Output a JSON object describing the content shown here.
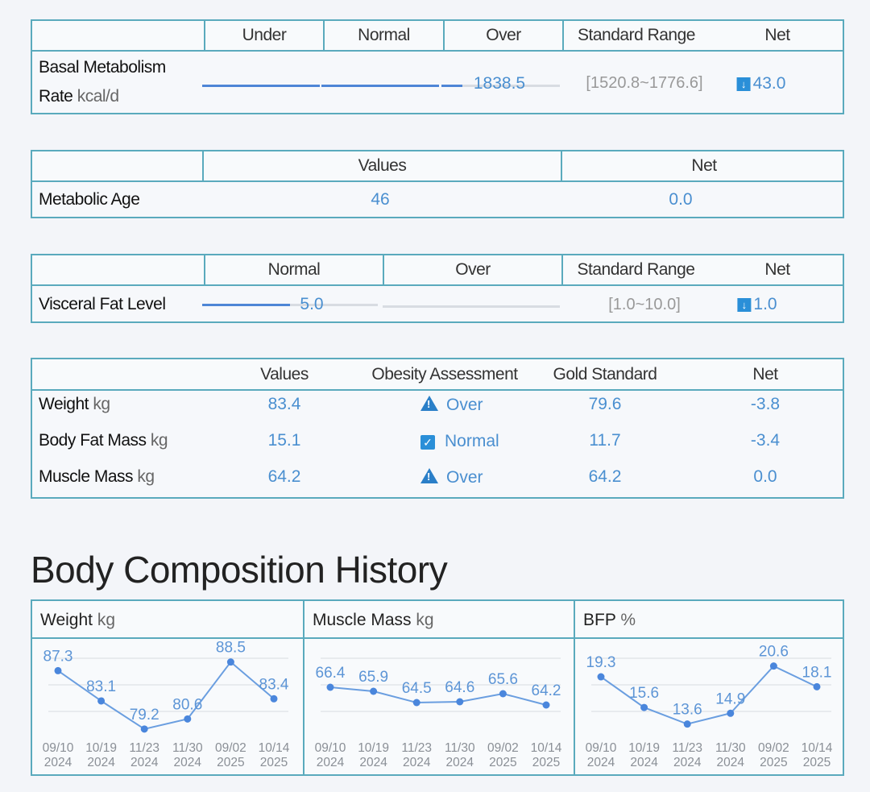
{
  "bmr_table": {
    "headers": [
      "Under",
      "Normal",
      "Over",
      "Standard Range",
      "Net"
    ],
    "label": "Basal Metabolism",
    "label2": "Rate",
    "unit": "kcal/d",
    "value": "1838.5",
    "range": "[1520.8~1776.6]",
    "net": "43.0",
    "net_icon": "down-arrow-icon",
    "bar_fill": [
      1,
      1,
      0.18
    ]
  },
  "metabolic_table": {
    "headers": [
      "Values",
      "Net"
    ],
    "label": "Metabolic Age",
    "value": "46",
    "net": "0.0"
  },
  "visceral_table": {
    "headers": [
      "Normal",
      "Over",
      "Standard Range",
      "Net"
    ],
    "label": "Visceral Fat Level",
    "value": "5.0",
    "range": "[1.0~10.0]",
    "net": "1.0",
    "net_icon": "down-arrow-icon",
    "bar_fill": [
      0.5,
      0
    ]
  },
  "obesity_table": {
    "headers": [
      "Values",
      "Obesity Assessment",
      "Gold Standard",
      "Net"
    ],
    "rows": [
      {
        "label": "Weight",
        "unit": "kg",
        "value": "83.4",
        "assessment": "Over",
        "icon": "warning-icon",
        "gold": "79.6",
        "net": "-3.8"
      },
      {
        "label": "Body Fat Mass",
        "unit": "kg",
        "value": "15.1",
        "assessment": "Normal",
        "icon": "check-icon",
        "gold": "11.7",
        "net": "-3.4"
      },
      {
        "label": "Muscle Mass",
        "unit": "kg",
        "value": "64.2",
        "assessment": "Over",
        "icon": "warning-icon",
        "gold": "64.2",
        "net": "0.0"
      }
    ]
  },
  "history_title": "Body Composition History",
  "chart_data": [
    {
      "type": "line",
      "title": "Weight",
      "unit": "kg",
      "x": [
        "09/10 2024",
        "10/19 2024",
        "11/23 2024",
        "11/30 2024",
        "09/02 2025",
        "10/14 2025"
      ],
      "values": [
        87.3,
        83.1,
        79.2,
        80.6,
        88.5,
        83.4
      ],
      "ylim": [
        78.4,
        90.7
      ],
      "grid": true
    },
    {
      "type": "line",
      "title": "Muscle Mass",
      "unit": "kg",
      "x": [
        "09/10 2024",
        "10/19 2024",
        "11/23 2024",
        "11/30 2024",
        "09/02 2025",
        "10/14 2025"
      ],
      "values": [
        66.4,
        65.9,
        64.5,
        64.6,
        65.6,
        64.2
      ],
      "ylim": [
        60.5,
        71.5
      ],
      "grid": true
    },
    {
      "type": "line",
      "title": "BFP",
      "unit": "%",
      "x": [
        "09/10 2024",
        "10/19 2024",
        "11/23 2024",
        "11/30 2024",
        "09/02 2025",
        "10/14 2025"
      ],
      "values": [
        19.3,
        15.6,
        13.6,
        14.9,
        20.6,
        18.1
      ],
      "ylim": [
        12.3,
        23.0
      ],
      "grid": true
    }
  ],
  "colors": {
    "accent": "#4a8fd0",
    "border": "#5aaabd",
    "line": "#6a9ee0"
  }
}
